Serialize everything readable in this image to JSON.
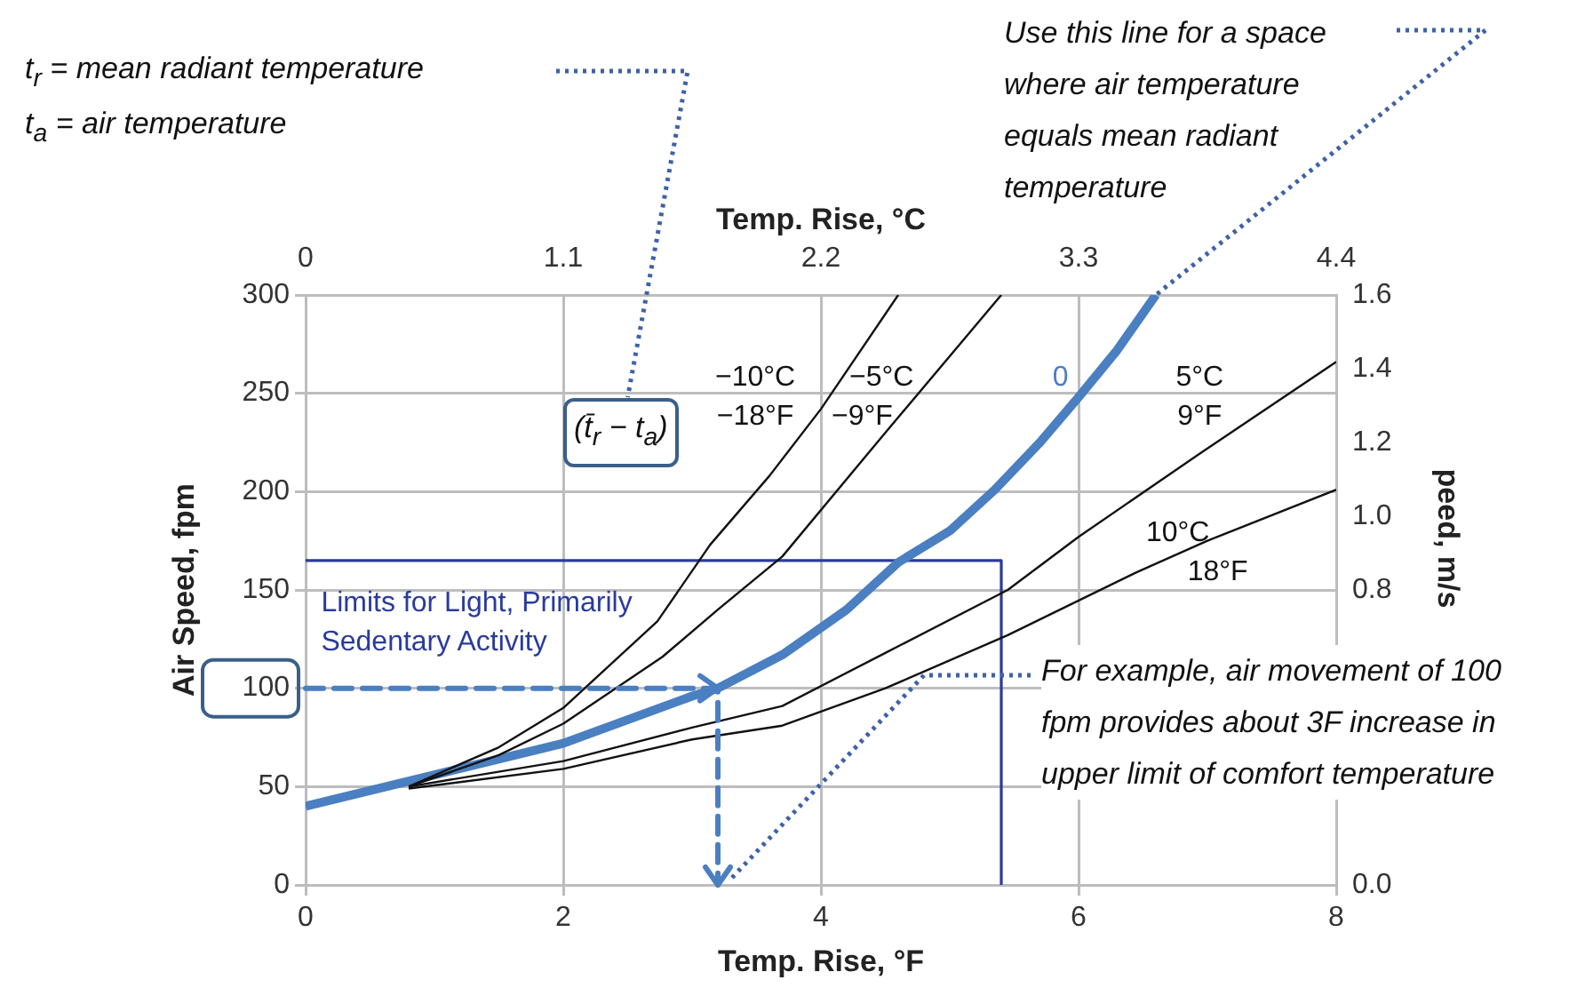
{
  "chart_data": {
    "type": "line",
    "xlabel": "Temp. Rise, °F",
    "ylabel": "Air Speed, fpm",
    "x2label": "Temp. Rise, °C",
    "y2label": "peed, m/s",
    "xlim": [
      0,
      8
    ],
    "xticks": [
      0,
      2,
      4,
      6,
      8
    ],
    "ylim": [
      0,
      300
    ],
    "yticks": [
      0,
      50,
      100,
      150,
      200,
      250,
      300
    ],
    "x2lim": [
      0,
      4.4
    ],
    "x2ticks": [
      0,
      1.1,
      2.2,
      3.3,
      4.4
    ],
    "y2lim": [
      0,
      1.6
    ],
    "y2ticks": [
      {
        "value": 0,
        "label": "0.0"
      },
      {
        "value": 0.8,
        "label": "0.8"
      },
      {
        "value": 1,
        "label": "1.0"
      },
      {
        "value": 1.2,
        "label": "1.2"
      },
      {
        "value": 1.4,
        "label": "1.4"
      },
      {
        "value": 1.6,
        "label": "1.6"
      }
    ],
    "grid": true,
    "marker": "none",
    "line_style": "solid",
    "series": [
      {
        "name": "−10°C\n−18°F",
        "color": "#111111",
        "x": [
          0.8,
          1.5,
          2,
          2.73,
          3.14,
          3.6,
          4,
          4.6
        ],
        "values": [
          50,
          70,
          90,
          134,
          173,
          208,
          242,
          300
        ]
      },
      {
        "name": "−5°C\n−9°F",
        "color": "#111111",
        "x": [
          0.8,
          1.5,
          2,
          2.77,
          3.2,
          3.7,
          4.5,
          5.4
        ],
        "values": [
          50,
          66,
          82,
          116,
          140,
          167,
          230,
          300
        ]
      },
      {
        "name": "0",
        "color": "#4a7fc1",
        "x": [
          0,
          1,
          2,
          3,
          3.2,
          3.7,
          4.2,
          4.6,
          5,
          5.35,
          5.7,
          6,
          6.3,
          6.6
        ],
        "values": [
          40,
          56,
          72,
          96,
          100,
          117,
          140,
          164,
          180,
          201,
          225,
          248,
          272,
          300
        ]
      },
      {
        "name": "5°C\n9°F",
        "color": "#111111",
        "x": [
          0.8,
          2,
          3,
          3.7,
          4.5,
          5.45,
          6,
          7,
          8
        ],
        "values": [
          50,
          63,
          80,
          91,
          118,
          150,
          177,
          222,
          266
        ]
      },
      {
        "name": "10°C\n18°F",
        "color": "#111111",
        "x": [
          0.8,
          2,
          3,
          3.7,
          4.5,
          5.45,
          6.45,
          7,
          8
        ],
        "values": [
          49,
          59,
          74,
          81,
          100,
          127,
          159,
          175,
          201
        ]
      },
      {
        "name": "Limits for Light, Primarily Sedentary Activity",
        "color": "#2a3b9c",
        "x": [
          0,
          5.4,
          5.4
        ],
        "values": [
          165,
          165,
          0
        ]
      }
    ],
    "annotations": [
      "t$_{r}$ = mean radiant temperature",
      "t$_{a}$ = air temperature",
      "(t̄$_{r}$ − t$_{a}$)",
      "Use this line for a space where air temperature equals mean radiant temperature",
      "For example, air movement of 100 fpm provides about 3F increase in upper limit of comfort temperature"
    ]
  }
}
